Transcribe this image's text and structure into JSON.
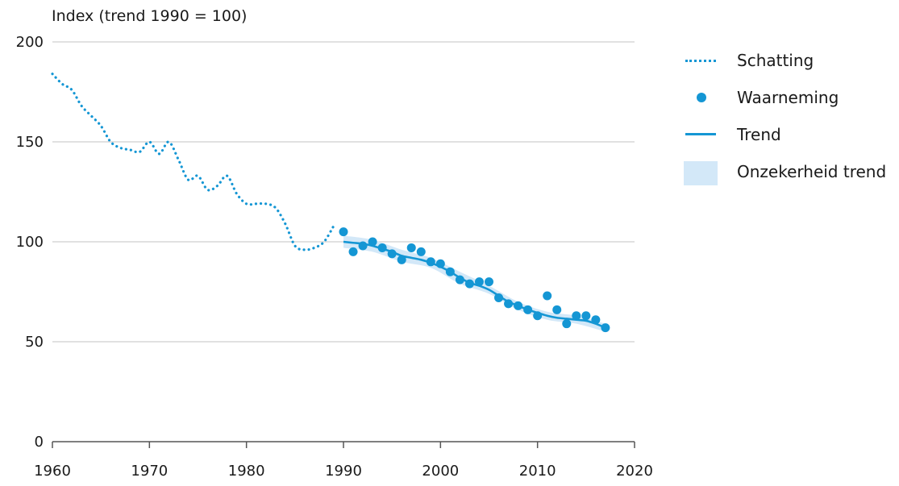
{
  "colors": {
    "series": "#1496d4",
    "band": "#d3e8f8",
    "grid": "#cfcfcf",
    "axis": "#555555"
  },
  "chart_data": {
    "type": "line",
    "ylabel": "Index (trend 1990 = 100)",
    "xlim": [
      1960,
      2020
    ],
    "ylim": [
      0,
      200
    ],
    "xticks": [
      "1960",
      "1970",
      "1980",
      "1990",
      "2000",
      "2010",
      "2020"
    ],
    "yticks": [
      "0",
      "50",
      "100",
      "150",
      "200"
    ],
    "grid": true,
    "legend_position": "right",
    "series": [
      {
        "name": "Schatting",
        "style": "dotted",
        "x": [
          1960,
          1961,
          1962,
          1963,
          1964,
          1965,
          1966,
          1967,
          1968,
          1969,
          1970,
          1971,
          1972,
          1973,
          1974,
          1975,
          1976,
          1977,
          1978,
          1979,
          1980,
          1981,
          1982,
          1983,
          1984,
          1985,
          1986,
          1987,
          1988,
          1989
        ],
        "y": [
          184,
          179,
          176,
          168,
          163,
          158,
          150,
          147,
          146,
          145,
          150,
          144,
          150,
          141,
          131,
          133,
          126,
          128,
          133,
          124,
          119,
          119,
          119,
          117,
          109,
          98,
          96,
          97,
          100,
          108
        ]
      },
      {
        "name": "Waarneming",
        "style": "points",
        "x": [
          1990,
          1991,
          1992,
          1993,
          1994,
          1995,
          1996,
          1997,
          1998,
          1999,
          2000,
          2001,
          2002,
          2003,
          2004,
          2005,
          2006,
          2007,
          2008,
          2009,
          2010,
          2011,
          2012,
          2013,
          2014,
          2015,
          2016,
          2017
        ],
        "y": [
          105,
          95,
          98,
          100,
          97,
          94,
          91,
          97,
          95,
          90,
          89,
          85,
          81,
          79,
          80,
          80,
          72,
          69,
          68,
          66,
          63,
          73,
          66,
          59,
          63,
          63,
          61,
          57
        ]
      },
      {
        "name": "Trend",
        "style": "line",
        "x": [
          1990,
          1991,
          1992,
          1993,
          1994,
          1995,
          1996,
          1997,
          1998,
          1999,
          2000,
          2001,
          2002,
          2003,
          2004,
          2005,
          2006,
          2007,
          2008,
          2009,
          2010,
          2011,
          2012,
          2013,
          2014,
          2015,
          2016,
          2017
        ],
        "y": [
          100,
          99.5,
          99,
          98,
          96.5,
          95,
          93,
          92,
          91,
          89.5,
          87.5,
          85,
          82,
          79.5,
          78,
          76,
          73,
          70,
          68,
          66,
          64.5,
          63,
          62,
          61.5,
          61,
          60.5,
          59,
          57
        ]
      },
      {
        "name": "Onzekerheid trend",
        "style": "band",
        "x": [
          1990,
          1993,
          1996,
          1999,
          2002,
          2005,
          2008,
          2011,
          2014,
          2017
        ],
        "lower": [
          97,
          95,
          90,
          87,
          79,
          74,
          66,
          61,
          59,
          55
        ],
        "upper": [
          103,
          101,
          96,
          92,
          85,
          78,
          70,
          65,
          63,
          59
        ]
      }
    ]
  },
  "legend": [
    {
      "label": "Schatting",
      "symbol": "dotted-line"
    },
    {
      "label": "Waarneming",
      "symbol": "dot"
    },
    {
      "label": "Trend",
      "symbol": "solid-line"
    },
    {
      "label": "Onzekerheid trend",
      "symbol": "band"
    }
  ]
}
